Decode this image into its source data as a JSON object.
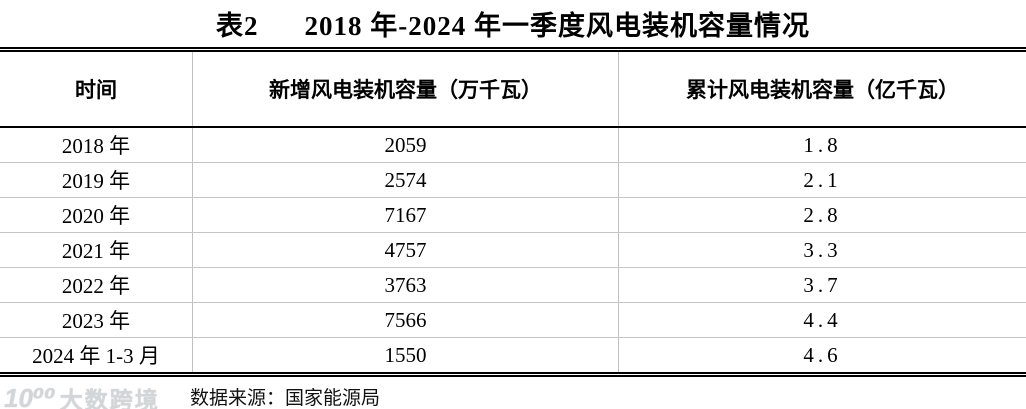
{
  "title": {
    "prefix": "表2",
    "text": "2018 年-2024 年一季度风电装机容量情况"
  },
  "table": {
    "columns": [
      {
        "label": "时间"
      },
      {
        "label": "新增风电装机容量（万千瓦）"
      },
      {
        "label": "累计风电装机容量（亿千瓦）"
      }
    ],
    "rows": [
      {
        "time": "2018 年",
        "new_capacity": "2059",
        "cumulative": "1.8"
      },
      {
        "time": "2019 年",
        "new_capacity": "2574",
        "cumulative": "2.1"
      },
      {
        "time": "2020 年",
        "new_capacity": "7167",
        "cumulative": "2.8"
      },
      {
        "time": "2021 年",
        "new_capacity": "4757",
        "cumulative": "3.3"
      },
      {
        "time": "2022 年",
        "new_capacity": "3763",
        "cumulative": "3.7"
      },
      {
        "time": "2023 年",
        "new_capacity": "7566",
        "cumulative": "4.4"
      },
      {
        "time": "2024 年 1-3 月",
        "new_capacity": "1550",
        "cumulative": "4.6"
      }
    ]
  },
  "footer": {
    "watermark": {
      "icon": "10⁰⁰",
      "brand": "大数跨境"
    },
    "source_label": "数据来源：国家能源局"
  },
  "colors": {
    "rule_black": "#000000",
    "grid_gray": "#c0c0c0",
    "watermark_gray": "#d2d6d8"
  }
}
